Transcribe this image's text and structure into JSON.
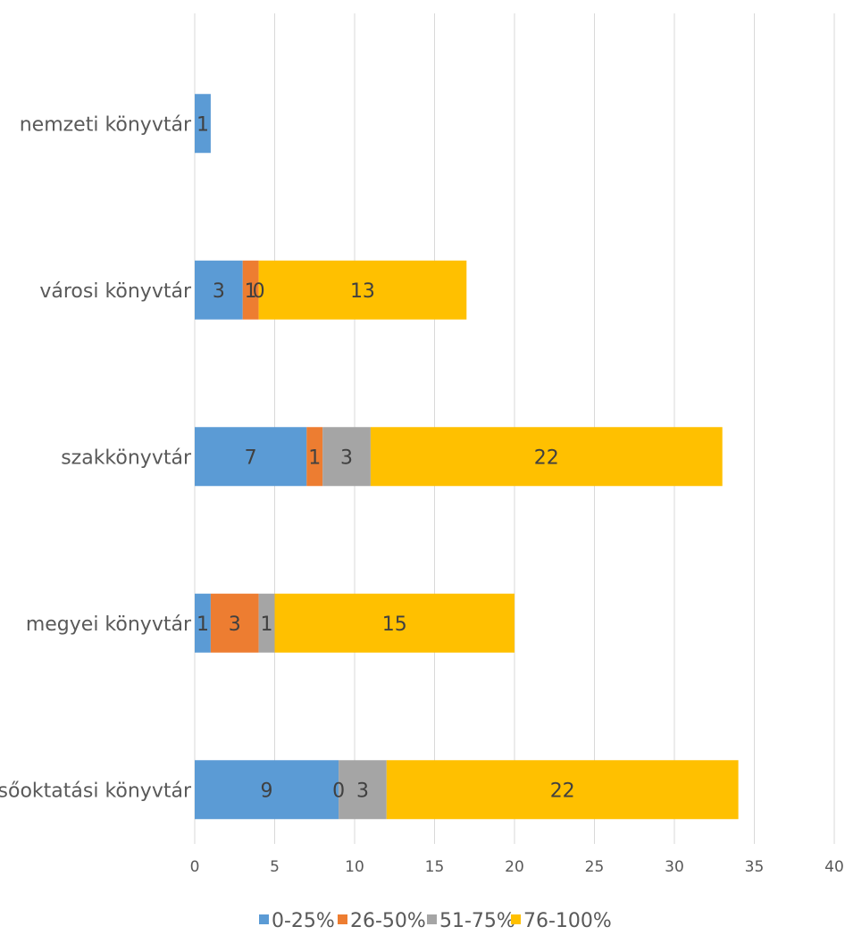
{
  "chart_data": {
    "type": "bar",
    "orientation": "horizontal",
    "stacked": true,
    "categories": [
      "nemzeti könyvtár",
      "városi könyvtár",
      "szakkönyvtár",
      "megyei könyvtár",
      "felsőoktatási könyvtár"
    ],
    "series": [
      {
        "name": "0-25%",
        "color": "#5b9bd5",
        "values": [
          1,
          3,
          7,
          1,
          9
        ]
      },
      {
        "name": "26-50%",
        "color": "#ed7d31",
        "values": [
          0,
          1,
          1,
          3,
          0
        ]
      },
      {
        "name": "51-75%",
        "color": "#a5a5a5",
        "values": [
          0,
          0,
          3,
          1,
          3
        ]
      },
      {
        "name": "76-100%",
        "color": "#ffc000",
        "values": [
          0,
          13,
          22,
          15,
          22
        ]
      }
    ],
    "data_labels": [
      [
        "1",
        "",
        "",
        ""
      ],
      [
        "3",
        "1",
        "0",
        "13"
      ],
      [
        "7",
        "1",
        "3",
        "22"
      ],
      [
        "1",
        "3",
        "1",
        "15"
      ],
      [
        "9",
        "0",
        "3",
        "22"
      ]
    ],
    "xlim": [
      0,
      40
    ],
    "xticks": [
      0,
      5,
      10,
      15,
      20,
      25,
      30,
      35,
      40
    ],
    "title": "",
    "xlabel": "",
    "ylabel": "",
    "grid": "vertical",
    "legend_position": "bottom"
  }
}
